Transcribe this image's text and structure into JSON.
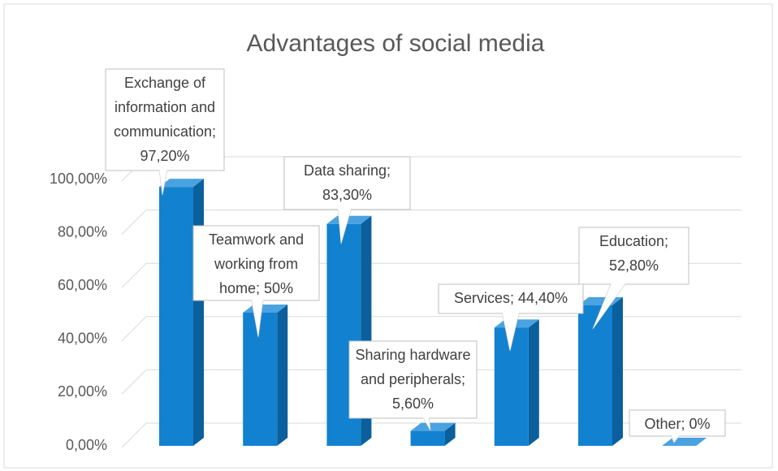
{
  "chart_data": {
    "type": "bar3d",
    "title": "Advantages of social media",
    "values": [
      97.2,
      50,
      83.3,
      5.6,
      44.4,
      52.8,
      0
    ],
    "value_labels": [
      "Exchange of information and communication; 97,20%",
      "Teamwork and working from home; 50%",
      "Data sharing; 83,30%",
      "Sharing hardware and peripherals; 5,60%",
      "Services; 44,40%",
      "Education; 52,80%",
      "Other; 0%"
    ],
    "color": "#1282d0",
    "side_color": "#0b5f9c",
    "top_color": "#4aa3e0",
    "ylim": [
      0,
      100
    ],
    "yticks": [
      {
        "value": 0,
        "label": "0,00%"
      },
      {
        "value": 20,
        "label": "20,00%"
      },
      {
        "value": 40,
        "label": "40,00%"
      },
      {
        "value": 60,
        "label": "60,00%"
      },
      {
        "value": 80,
        "label": "80,00%"
      },
      {
        "value": 100,
        "label": "100,00%"
      }
    ],
    "grid": true
  }
}
